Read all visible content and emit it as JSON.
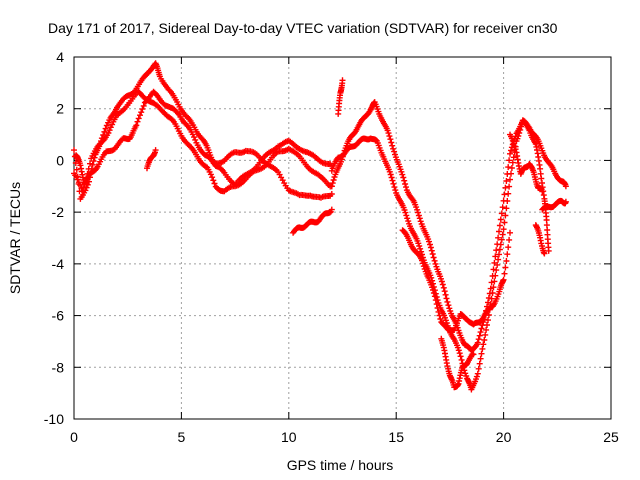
{
  "chart_data": {
    "type": "scatter",
    "title": "Day 171 of 2017, Sidereal Day-to-day VTEC variation (SDTVAR) for receiver cn30",
    "xlabel": "GPS time / hours",
    "ylabel": "SDTVAR / TECUs",
    "xlim": [
      0,
      25
    ],
    "ylim": [
      -10,
      4
    ],
    "xticks": [
      0,
      5,
      10,
      15,
      20,
      25
    ],
    "yticks": [
      -10,
      -8,
      -6,
      -4,
      -2,
      0,
      2,
      4
    ],
    "grid": true,
    "marker": "+",
    "series": [
      {
        "name": "SDTVAR cn30",
        "color": "#ff0000",
        "tracks": [
          [
            [
              0.0,
              0.4
            ],
            [
              0.3,
              -1.5
            ],
            [
              0.7,
              -0.8
            ],
            [
              1.0,
              0.2
            ],
            [
              1.3,
              0.9
            ],
            [
              1.7,
              1.6
            ],
            [
              2.0,
              2.1
            ],
            [
              2.4,
              2.4
            ],
            [
              2.8,
              2.7
            ],
            [
              3.2,
              3.1
            ],
            [
              3.5,
              3.5
            ],
            [
              3.8,
              3.7
            ],
            [
              4.0,
              3.3
            ],
            [
              4.4,
              2.7
            ],
            [
              4.8,
              2.3
            ],
            [
              5.2,
              1.7
            ],
            [
              5.6,
              1.3
            ],
            [
              6.0,
              0.8
            ],
            [
              6.3,
              0.3
            ],
            [
              6.6,
              -0.2
            ],
            [
              7.0,
              -0.5
            ],
            [
              7.5,
              -0.9
            ],
            [
              8.0,
              -0.6
            ],
            [
              8.5,
              -0.2
            ],
            [
              9.0,
              0.2
            ],
            [
              9.5,
              0.6
            ],
            [
              10.0,
              0.7
            ],
            [
              10.5,
              0.5
            ],
            [
              11.0,
              0.2
            ],
            [
              11.5,
              0.0
            ],
            [
              12.0,
              -0.2
            ]
          ],
          [
            [
              0.0,
              -0.5
            ],
            [
              0.4,
              -1.2
            ],
            [
              0.8,
              0.1
            ],
            [
              1.2,
              0.6
            ],
            [
              1.6,
              1.1
            ],
            [
              2.0,
              1.7
            ],
            [
              2.5,
              2.2
            ],
            [
              3.0,
              2.6
            ],
            [
              3.4,
              2.4
            ],
            [
              3.8,
              2.1
            ],
            [
              4.2,
              1.9
            ],
            [
              4.6,
              1.5
            ],
            [
              5.0,
              1.0
            ],
            [
              5.4,
              0.5
            ],
            [
              5.8,
              0.1
            ],
            [
              6.2,
              -0.3
            ],
            [
              6.6,
              -1.0
            ],
            [
              7.0,
              -1.2
            ],
            [
              7.5,
              -1.0
            ],
            [
              8.0,
              -0.7
            ],
            [
              8.5,
              -0.4
            ],
            [
              9.0,
              -0.1
            ],
            [
              9.5,
              0.3
            ],
            [
              10.0,
              0.5
            ],
            [
              10.5,
              0.1
            ],
            [
              11.0,
              -0.3
            ],
            [
              11.5,
              -0.7
            ],
            [
              12.0,
              -1.0
            ]
          ],
          [
            [
              0.1,
              0.2
            ],
            [
              0.3,
              -0.2
            ],
            [
              0.5,
              -0.9
            ],
            [
              0.8,
              -0.5
            ],
            [
              1.1,
              -0.2
            ],
            [
              1.5,
              0.3
            ],
            [
              1.9,
              0.5
            ],
            [
              2.3,
              0.8
            ],
            [
              2.6,
              0.9
            ],
            [
              2.9,
              1.3
            ],
            [
              3.3,
              2.3
            ],
            [
              3.7,
              2.6
            ],
            [
              4.1,
              2.3
            ],
            [
              4.5,
              2.0
            ],
            [
              4.9,
              1.8
            ],
            [
              5.3,
              1.3
            ],
            [
              5.7,
              0.7
            ],
            [
              6.1,
              0.2
            ],
            [
              6.5,
              -0.1
            ],
            [
              7.0,
              0.0
            ],
            [
              7.5,
              0.3
            ],
            [
              8.0,
              0.4
            ],
            [
              8.5,
              0.2
            ],
            [
              9.0,
              -0.1
            ],
            [
              9.5,
              -0.5
            ],
            [
              10.0,
              -1.1
            ],
            [
              10.5,
              -1.4
            ],
            [
              11.0,
              -1.3
            ],
            [
              11.5,
              -1.5
            ],
            [
              12.0,
              -1.3
            ]
          ],
          [
            [
              12.0,
              -1.0
            ],
            [
              12.3,
              -0.3
            ],
            [
              12.6,
              0.4
            ],
            [
              12.9,
              0.9
            ],
            [
              13.2,
              1.3
            ],
            [
              13.5,
              1.6
            ],
            [
              13.8,
              2.0
            ],
            [
              14.0,
              2.2
            ],
            [
              14.3,
              1.7
            ],
            [
              14.6,
              1.1
            ],
            [
              14.9,
              0.4
            ],
            [
              15.2,
              -0.4
            ],
            [
              15.5,
              -1.1
            ],
            [
              15.8,
              -1.6
            ],
            [
              16.1,
              -2.2
            ],
            [
              16.4,
              -2.9
            ],
            [
              16.7,
              -3.6
            ],
            [
              17.0,
              -4.4
            ],
            [
              17.3,
              -5.2
            ],
            [
              17.6,
              -6.0
            ],
            [
              17.9,
              -6.6
            ],
            [
              18.2,
              -7.1
            ],
            [
              18.5,
              -7.4
            ],
            [
              18.8,
              -7.0
            ],
            [
              19.1,
              -6.2
            ],
            [
              19.4,
              -4.9
            ],
            [
              19.7,
              -3.3
            ],
            [
              20.0,
              -1.5
            ],
            [
              20.3,
              0.2
            ],
            [
              20.6,
              1.1
            ],
            [
              20.9,
              1.5
            ],
            [
              21.2,
              1.3
            ],
            [
              21.5,
              0.9
            ],
            [
              21.8,
              0.4
            ],
            [
              22.1,
              -0.1
            ],
            [
              22.4,
              -0.5
            ],
            [
              22.7,
              -0.8
            ],
            [
              22.9,
              -1.0
            ]
          ],
          [
            [
              12.0,
              -0.4
            ],
            [
              12.3,
              0.1
            ],
            [
              12.6,
              0.3
            ],
            [
              12.9,
              0.5
            ],
            [
              13.2,
              0.7
            ],
            [
              13.5,
              0.8
            ],
            [
              13.8,
              0.9
            ],
            [
              14.1,
              0.7
            ],
            [
              14.4,
              0.2
            ],
            [
              14.7,
              -0.5
            ],
            [
              15.0,
              -1.2
            ],
            [
              15.3,
              -1.8
            ],
            [
              15.6,
              -2.4
            ],
            [
              15.9,
              -3.0
            ],
            [
              16.2,
              -3.6
            ],
            [
              16.5,
              -4.3
            ],
            [
              16.8,
              -5.0
            ],
            [
              17.1,
              -5.8
            ],
            [
              17.4,
              -6.4
            ],
            [
              17.7,
              -6.9
            ],
            [
              18.0,
              -7.6
            ],
            [
              18.3,
              -8.4
            ],
            [
              18.5,
              -8.9
            ],
            [
              18.8,
              -8.2
            ],
            [
              19.1,
              -7.0
            ],
            [
              19.4,
              -5.5
            ],
            [
              19.7,
              -4.1
            ],
            [
              20.0,
              -2.6
            ],
            [
              20.3,
              -0.8
            ],
            [
              20.6,
              0.8
            ],
            [
              20.9,
              1.5
            ],
            [
              21.2,
              1.2
            ],
            [
              21.5,
              0.6
            ],
            [
              21.7,
              -0.3
            ],
            [
              21.9,
              -1.5
            ],
            [
              22.0,
              -2.3
            ],
            [
              22.1,
              -3.5
            ]
          ],
          [
            [
              15.3,
              -2.7
            ],
            [
              15.6,
              -3.1
            ],
            [
              15.9,
              -3.5
            ],
            [
              16.2,
              -3.9
            ],
            [
              16.5,
              -4.5
            ],
            [
              16.8,
              -5.3
            ],
            [
              17.1,
              -6.2
            ],
            [
              17.4,
              -6.6
            ],
            [
              17.7,
              -6.5
            ],
            [
              18.0,
              -6.0
            ],
            [
              18.3,
              -6.1
            ],
            [
              18.6,
              -6.4
            ],
            [
              18.9,
              -6.2
            ],
            [
              19.2,
              -5.9
            ],
            [
              19.5,
              -5.6
            ],
            [
              19.8,
              -5.1
            ],
            [
              20.0,
              -4.6
            ],
            [
              20.3,
              -2.8
            ]
          ],
          [
            [
              17.1,
              -6.9
            ],
            [
              17.3,
              -7.6
            ],
            [
              17.5,
              -8.3
            ],
            [
              17.7,
              -8.8
            ],
            [
              17.9,
              -8.6
            ],
            [
              18.1,
              -8.0
            ],
            [
              18.3,
              -7.8
            ],
            [
              18.6,
              -7.5
            ]
          ],
          [
            [
              20.3,
              1.0
            ],
            [
              20.6,
              0.3
            ],
            [
              20.8,
              -0.5
            ],
            [
              21.0,
              -0.3
            ],
            [
              21.2,
              -0.1
            ],
            [
              21.4,
              -0.5
            ],
            [
              21.6,
              -1.0
            ],
            [
              21.8,
              -1.2
            ]
          ],
          [
            [
              21.8,
              -1.9
            ],
            [
              22.1,
              -1.8
            ],
            [
              22.4,
              -1.7
            ],
            [
              22.7,
              -1.6
            ],
            [
              22.9,
              -1.6
            ]
          ],
          [
            [
              21.5,
              -2.5
            ],
            [
              21.7,
              -3.0
            ],
            [
              21.9,
              -3.6
            ]
          ],
          [
            [
              10.2,
              -2.8
            ],
            [
              10.5,
              -2.6
            ],
            [
              10.8,
              -2.5
            ],
            [
              11.1,
              -2.4
            ],
            [
              11.4,
              -2.3
            ],
            [
              11.7,
              -2.1
            ],
            [
              12.0,
              -1.9
            ]
          ],
          [
            [
              12.3,
              1.8
            ],
            [
              12.4,
              2.6
            ],
            [
              12.5,
              3.1
            ]
          ],
          [
            [
              3.4,
              -0.3
            ],
            [
              3.6,
              0.1
            ],
            [
              3.8,
              0.4
            ]
          ]
        ]
      }
    ]
  }
}
